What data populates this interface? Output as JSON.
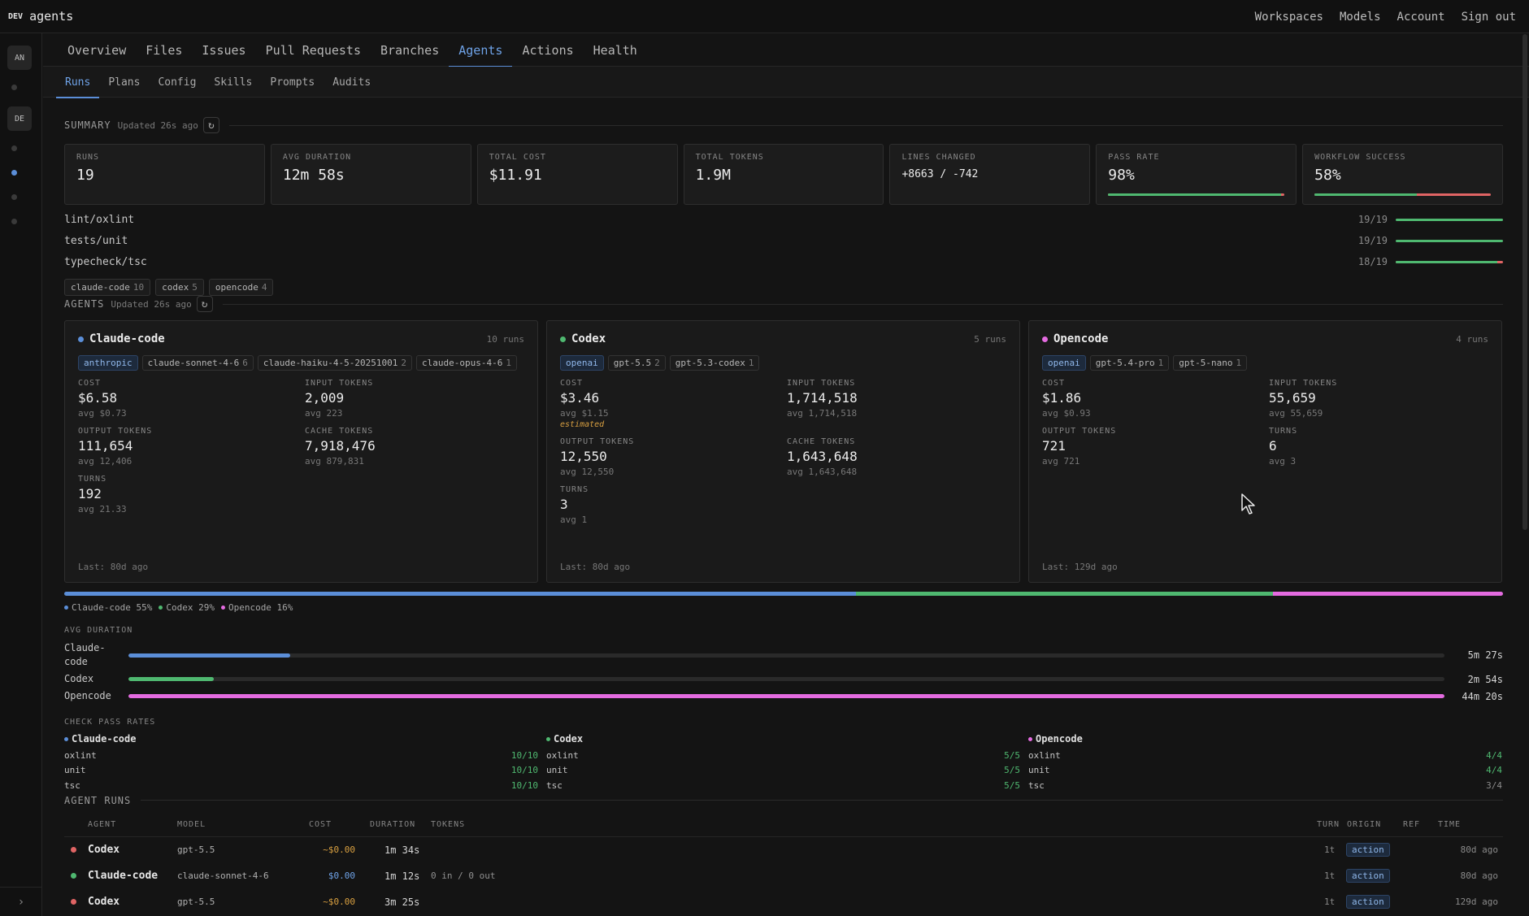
{
  "app": {
    "env_badge": "DEV",
    "name": "agents"
  },
  "top_links": [
    "Workspaces",
    "Models",
    "Account",
    "Sign out"
  ],
  "rail": {
    "tiles": [
      "AN",
      "DE"
    ]
  },
  "primary_tabs": [
    "Overview",
    "Files",
    "Issues",
    "Pull Requests",
    "Branches",
    "Agents",
    "Actions",
    "Health"
  ],
  "primary_active": "Agents",
  "secondary_tabs": [
    "Runs",
    "Plans",
    "Config",
    "Skills",
    "Prompts",
    "Audits"
  ],
  "secondary_active": "Runs",
  "summary": {
    "title": "SUMMARY",
    "updated": "Updated 26s ago",
    "stats": [
      {
        "label": "RUNS",
        "value": "19"
      },
      {
        "label": "AVG DURATION",
        "value": "12m 58s"
      },
      {
        "label": "TOTAL COST",
        "value": "$11.91"
      },
      {
        "label": "TOTAL TOKENS",
        "value": "1.9M"
      },
      {
        "label": "LINES CHANGED",
        "value": "+8663 / -742"
      },
      {
        "label": "PASS RATE",
        "value": "98%",
        "bar_fraction": 0.98
      },
      {
        "label": "WORKFLOW SUCCESS",
        "value": "58%",
        "bar_fraction": 0.58
      }
    ],
    "checks": [
      {
        "name": "lint/oxlint",
        "count": "19/19",
        "fraction": 1.0
      },
      {
        "name": "tests/unit",
        "count": "19/19",
        "fraction": 1.0
      },
      {
        "name": "typecheck/tsc",
        "count": "18/19",
        "fraction": 0.947
      }
    ],
    "agent_chips": [
      {
        "name": "claude-code",
        "n": "10"
      },
      {
        "name": "codex",
        "n": "5"
      },
      {
        "name": "opencode",
        "n": "4"
      }
    ]
  },
  "agents_section": {
    "title": "AGENTS",
    "updated": "Updated 26s ago",
    "cards": [
      {
        "name": "Claude-code",
        "runs": "10 runs",
        "color": "#5b8ed8",
        "provider": "anthropic",
        "models": [
          {
            "name": "claude-sonnet-4-6",
            "n": "6"
          },
          {
            "name": "claude-haiku-4-5-20251001",
            "n": "2"
          },
          {
            "name": "claude-opus-4-6",
            "n": "1"
          }
        ],
        "metrics": [
          {
            "label": "COST",
            "value": "$6.58",
            "avg": "avg $0.73"
          },
          {
            "label": "INPUT TOKENS",
            "value": "2,009",
            "avg": "avg 223"
          },
          {
            "label": "OUTPUT TOKENS",
            "value": "111,654",
            "avg": "avg 12,406"
          },
          {
            "label": "CACHE TOKENS",
            "value": "7,918,476",
            "avg": "avg 879,831"
          },
          {
            "label": "TURNS",
            "value": "192",
            "avg": "avg 21.33"
          }
        ],
        "last": "Last: 80d ago"
      },
      {
        "name": "Codex",
        "runs": "5 runs",
        "color": "#4fb870",
        "provider": "openai",
        "models": [
          {
            "name": "gpt-5.5",
            "n": "2"
          },
          {
            "name": "gpt-5.3-codex",
            "n": "1"
          }
        ],
        "metrics": [
          {
            "label": "COST",
            "value": "$3.46",
            "avg": "avg $1.15",
            "note": "estimated"
          },
          {
            "label": "INPUT TOKENS",
            "value": "1,714,518",
            "avg": "avg 1,714,518"
          },
          {
            "label": "OUTPUT TOKENS",
            "value": "12,550",
            "avg": "avg 12,550"
          },
          {
            "label": "CACHE TOKENS",
            "value": "1,643,648",
            "avg": "avg 1,643,648"
          },
          {
            "label": "TURNS",
            "value": "3",
            "avg": "avg 1"
          }
        ],
        "last": "Last: 80d ago"
      },
      {
        "name": "Opencode",
        "runs": "4 runs",
        "color": "#e46be0",
        "provider": "openai",
        "models": [
          {
            "name": "gpt-5.4-pro",
            "n": "1"
          },
          {
            "name": "gpt-5-nano",
            "n": "1"
          }
        ],
        "metrics": [
          {
            "label": "COST",
            "value": "$1.86",
            "avg": "avg $0.93"
          },
          {
            "label": "INPUT TOKENS",
            "value": "55,659",
            "avg": "avg 55,659"
          },
          {
            "label": "OUTPUT TOKENS",
            "value": "721",
            "avg": "avg 721"
          },
          {
            "label": "TURNS",
            "value": "6",
            "avg": "avg 3"
          }
        ],
        "last": "Last: 129d ago"
      }
    ],
    "share": [
      {
        "name": "Claude-code",
        "pct": 55,
        "label": "Claude-code 55%",
        "color": "#5b8ed8"
      },
      {
        "name": "Codex",
        "pct": 29,
        "label": "Codex 29%",
        "color": "#4fb870"
      },
      {
        "name": "Opencode",
        "pct": 16,
        "label": "Opencode 16%",
        "color": "#e46be0"
      }
    ],
    "avg_duration": {
      "title": "AVG DURATION",
      "rows": [
        {
          "name": "Claude-code",
          "value": "5m 27s",
          "fraction": 0.123,
          "color": "#5b8ed8"
        },
        {
          "name": "Codex",
          "value": "2m 54s",
          "fraction": 0.065,
          "color": "#4fb870"
        },
        {
          "name": "Opencode",
          "value": "44m 20s",
          "fraction": 1.0,
          "color": "#e46be0"
        }
      ]
    },
    "pass_rates": {
      "title": "CHECK PASS RATES",
      "columns": [
        {
          "name": "Claude-code",
          "color": "#5b8ed8",
          "rows": [
            [
              "oxlint",
              "10/10"
            ],
            [
              "unit",
              "10/10"
            ],
            [
              "tsc",
              "10/10"
            ]
          ]
        },
        {
          "name": "Codex",
          "color": "#4fb870",
          "rows": [
            [
              "oxlint",
              "5/5"
            ],
            [
              "unit",
              "5/5"
            ],
            [
              "tsc",
              "5/5"
            ]
          ]
        },
        {
          "name": "Opencode",
          "color": "#e46be0",
          "rows": [
            [
              "oxlint",
              "4/4"
            ],
            [
              "unit",
              "4/4"
            ],
            [
              "tsc",
              "3/4"
            ]
          ]
        }
      ]
    }
  },
  "agent_runs": {
    "title": "AGENT RUNS",
    "columns": [
      "AGENT",
      "MODEL",
      "COST",
      "DURATION",
      "TOKENS",
      "TURN",
      "ORIGIN",
      "REF",
      "TIME"
    ],
    "rows": [
      {
        "status_color": "#e06464",
        "agent": "Codex",
        "model": "gpt-5.5",
        "cost": "~$0.00",
        "cost_color": "#d9a041",
        "duration": "1m 34s",
        "tokens": "",
        "turn": "1t",
        "origin": "action",
        "ref": "",
        "time": "80d ago"
      },
      {
        "status_color": "#4fb870",
        "agent": "Claude-code",
        "model": "claude-sonnet-4-6",
        "cost": "$0.00",
        "cost_color": "#6fa3e8",
        "duration": "1m 12s",
        "tokens": "0 in / 0 out",
        "turn": "1t",
        "origin": "action",
        "ref": "",
        "time": "80d ago"
      },
      {
        "status_color": "#e06464",
        "agent": "Codex",
        "model": "gpt-5.5",
        "cost": "~$0.00",
        "cost_color": "#d9a041",
        "duration": "3m 25s",
        "tokens": "",
        "turn": "1t",
        "origin": "action",
        "ref": "",
        "time": "129d ago"
      }
    ]
  }
}
